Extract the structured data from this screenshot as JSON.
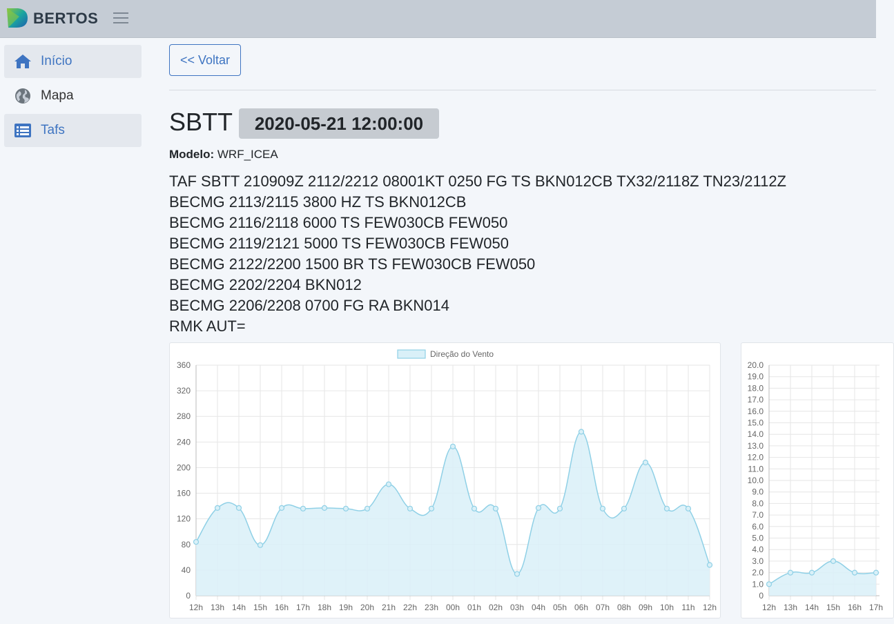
{
  "app": {
    "brand": "BERTOS"
  },
  "sidebar": {
    "items": [
      {
        "label": "Início",
        "icon": "home-icon"
      },
      {
        "label": "Mapa",
        "icon": "globe-icon"
      },
      {
        "label": "Tafs",
        "icon": "list-icon"
      }
    ]
  },
  "main": {
    "back_label": "<< Voltar",
    "station": "SBTT",
    "datetime": "2020-05-21 12:00:00",
    "modelo_label": "Modelo:",
    "modelo_value": "WRF_ICEA",
    "taf_lines": [
      "TAF SBTT 210909Z 2112/2212 08001KT 0250 FG TS BKN012CB TX32/2118Z TN23/2112Z",
      "BECMG 2113/2115 3800 HZ TS BKN012CB",
      "BECMG 2116/2118 6000 TS FEW030CB FEW050",
      "BECMG 2119/2121 5000 TS FEW030CB FEW050",
      "BECMG 2122/2200 1500 BR TS FEW030CB FEW050",
      "BECMG 2202/2204 BKN012",
      "BECMG 2206/2208 0700 FG RA BKN014",
      "RMK AUT="
    ]
  },
  "colors": {
    "accent": "#3e74c1",
    "series_line": "#8fd0e6",
    "series_fill": "#d9f0f8"
  },
  "chart_data": [
    {
      "type": "area",
      "legend": "Direção do Vento",
      "legend_position": "top",
      "categories": [
        "12h",
        "13h",
        "14h",
        "15h",
        "16h",
        "17h",
        "18h",
        "19h",
        "20h",
        "21h",
        "22h",
        "23h",
        "00h",
        "01h",
        "02h",
        "03h",
        "04h",
        "05h",
        "06h",
        "07h",
        "08h",
        "09h",
        "10h",
        "11h",
        "12h"
      ],
      "values": [
        84,
        137,
        137,
        79,
        137,
        136,
        137,
        136,
        136,
        174,
        136,
        136,
        233,
        136,
        136,
        34,
        137,
        136,
        256,
        136,
        136,
        208,
        136,
        136,
        48
      ],
      "yticks": [
        "0",
        "40",
        "80",
        "120",
        "160",
        "200",
        "240",
        "280",
        "320",
        "360"
      ],
      "ylim": [
        0,
        360
      ],
      "grid": true
    },
    {
      "type": "area",
      "categories": [
        "12h",
        "13h",
        "14h",
        "15h",
        "16h",
        "17h"
      ],
      "values": [
        1.0,
        2.0,
        2.0,
        3.0,
        2.0,
        2.0
      ],
      "yticks": [
        "0",
        "1.0",
        "2.0",
        "3.0",
        "4.0",
        "5.0",
        "6.0",
        "7.0",
        "8.0",
        "9.0",
        "10.0",
        "11.0",
        "12.0",
        "13.0",
        "14.0",
        "15.0",
        "16.0",
        "17.0",
        "18.0",
        "19.0",
        "20.0"
      ],
      "ylim": [
        0,
        20
      ],
      "grid": true
    }
  ]
}
